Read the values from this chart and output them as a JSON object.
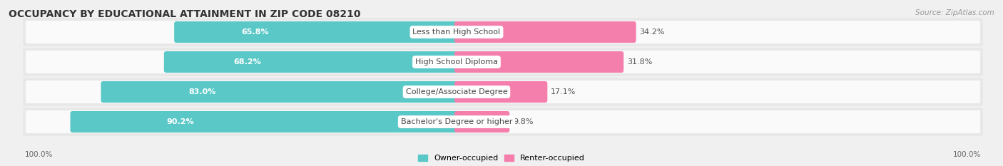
{
  "title": "OCCUPANCY BY EDUCATIONAL ATTAINMENT IN ZIP CODE 08210",
  "source": "Source: ZipAtlas.com",
  "categories": [
    "Less than High School",
    "High School Diploma",
    "College/Associate Degree",
    "Bachelor's Degree or higher"
  ],
  "owner_values": [
    65.8,
    68.2,
    83.0,
    90.2
  ],
  "renter_values": [
    34.2,
    31.8,
    17.1,
    9.8
  ],
  "owner_color": "#5BC8C8",
  "renter_color": "#F47EAC",
  "background_color": "#F0F0F0",
  "row_bg_color": "#E8E8E8",
  "row_inner_color": "#FAFAFA",
  "title_fontsize": 10,
  "label_fontsize": 8,
  "value_fontsize": 8,
  "legend_fontsize": 8,
  "axis_label_fontsize": 7.5,
  "left_axis_label": "100.0%",
  "right_axis_label": "100.0%"
}
